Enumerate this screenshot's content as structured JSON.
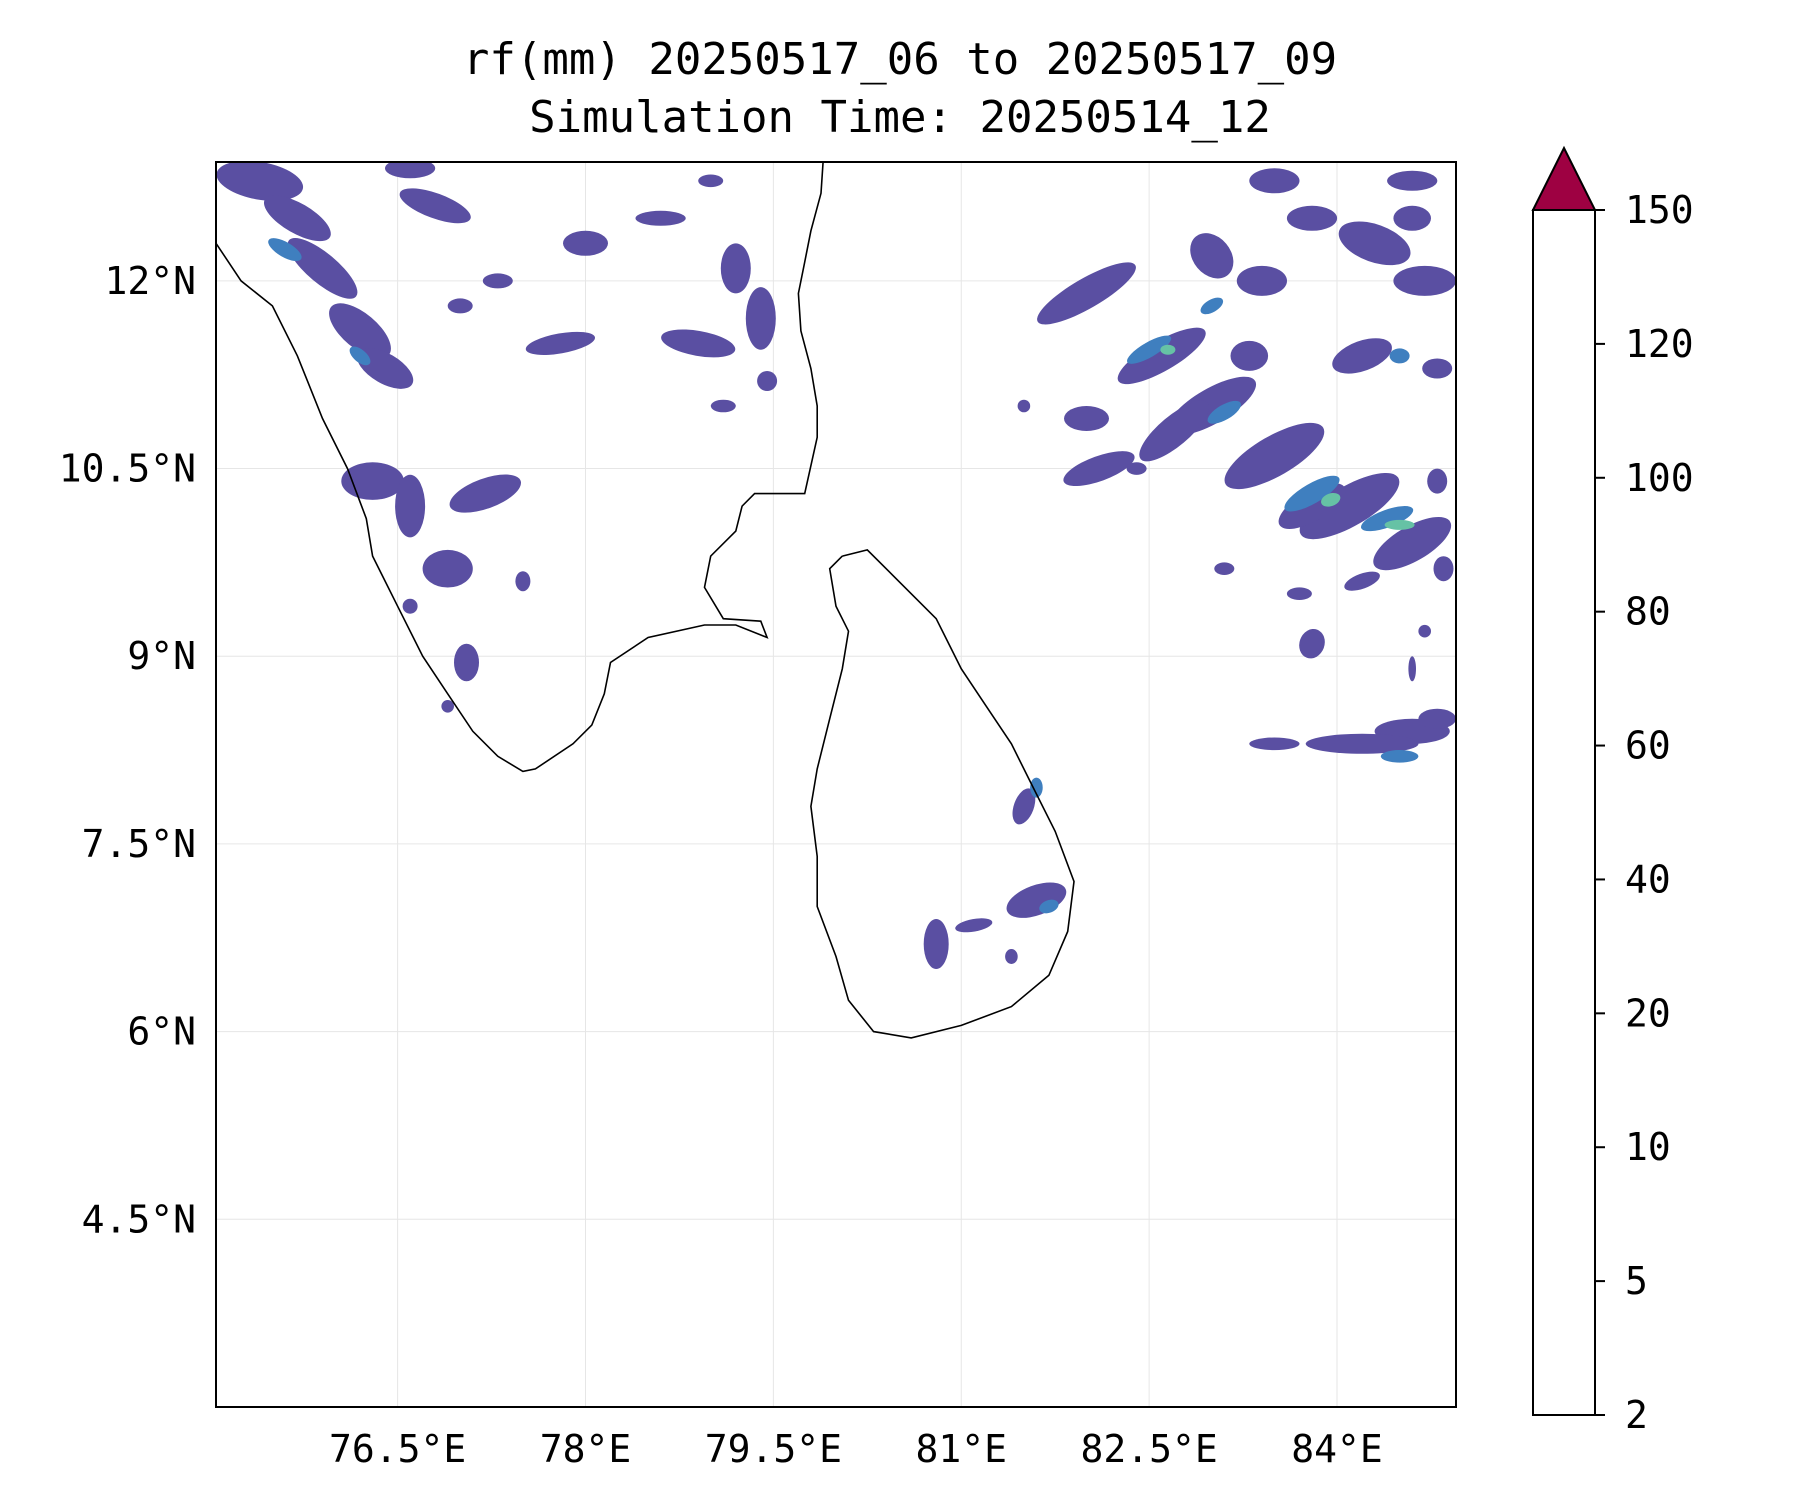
{
  "title": {
    "line1": "rf(mm) 20250517_06 to 20250517_09",
    "line2": "Simulation Time: 20250514_12"
  },
  "map": {
    "lon_range": [
      75.05,
      84.95
    ],
    "lat_range": [
      3.0,
      12.95
    ],
    "lon_ticks": [
      {
        "value": 76.5,
        "label": "76.5°E"
      },
      {
        "value": 78.0,
        "label": "78°E"
      },
      {
        "value": 79.5,
        "label": "79.5°E"
      },
      {
        "value": 81.0,
        "label": "81°E"
      },
      {
        "value": 82.5,
        "label": "82.5°E"
      },
      {
        "value": 84.0,
        "label": "84°E"
      }
    ],
    "lat_ticks": [
      {
        "value": 12.0,
        "label": "12°N"
      },
      {
        "value": 10.5,
        "label": "10.5°N"
      },
      {
        "value": 9.0,
        "label": "9°N"
      },
      {
        "value": 7.5,
        "label": "7.5°N"
      },
      {
        "value": 6.0,
        "label": "6°N"
      },
      {
        "value": 4.5,
        "label": "4.5°N"
      }
    ],
    "gridlines": true,
    "coastline_color": "#000000",
    "rain_color_low": "#5a4fa2",
    "rain_color_mid": "#3f7fbf",
    "rain_color_high": "#66c2a5"
  },
  "colorbar": {
    "levels": [
      "2",
      "5",
      "10",
      "20",
      "40",
      "60",
      "80",
      "100",
      "120",
      "150"
    ],
    "colors": [
      "#5e4fa2",
      "#4e62ab",
      "#3a7fbb",
      "#62bda8",
      "#bde3a0",
      "#f3f9ad",
      "#fde08a",
      "#fa9b58",
      "#d53e4f"
    ],
    "extend_color": "#9e0142",
    "extend": "max"
  }
}
